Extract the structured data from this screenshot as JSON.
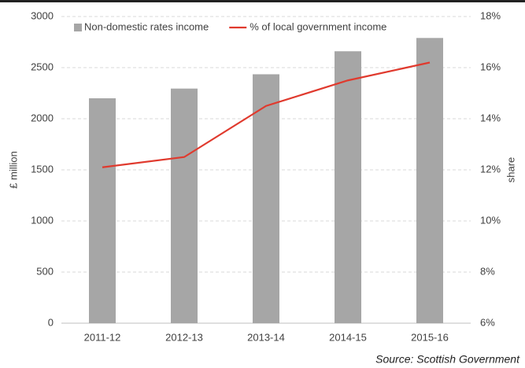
{
  "chart_data": {
    "type": "bar_line",
    "categories": [
      "2011-12",
      "2012-13",
      "2013-14",
      "2014-15",
      "2015-16"
    ],
    "series": [
      {
        "name": "Non-domestic rates income",
        "type": "bar",
        "color": "#a6a6a6",
        "values": [
          2200,
          2295,
          2435,
          2660,
          2790
        ]
      },
      {
        "name": "% of local government income",
        "type": "line",
        "axis": "y2",
        "color": "#e03a2e",
        "values": [
          12.1,
          12.5,
          14.5,
          15.5,
          16.2
        ]
      }
    ],
    "ylabel": "£ million",
    "y2label": "share",
    "ylim": [
      0,
      3000
    ],
    "yticks": [
      0,
      500,
      1000,
      1500,
      2000,
      2500,
      3000
    ],
    "y2lim": [
      6,
      18
    ],
    "y2ticks": [
      {
        "value": 6,
        "label": "6%"
      },
      {
        "value": 8,
        "label": "8%"
      },
      {
        "value": 10,
        "label": "10%"
      },
      {
        "value": 12,
        "label": "12%"
      },
      {
        "value": 14,
        "label": "14%"
      },
      {
        "value": 16,
        "label": "16%"
      },
      {
        "value": 18,
        "label": "18%"
      }
    ],
    "grid": true,
    "legend": "upper left",
    "source": "Source: Scottish Government"
  }
}
